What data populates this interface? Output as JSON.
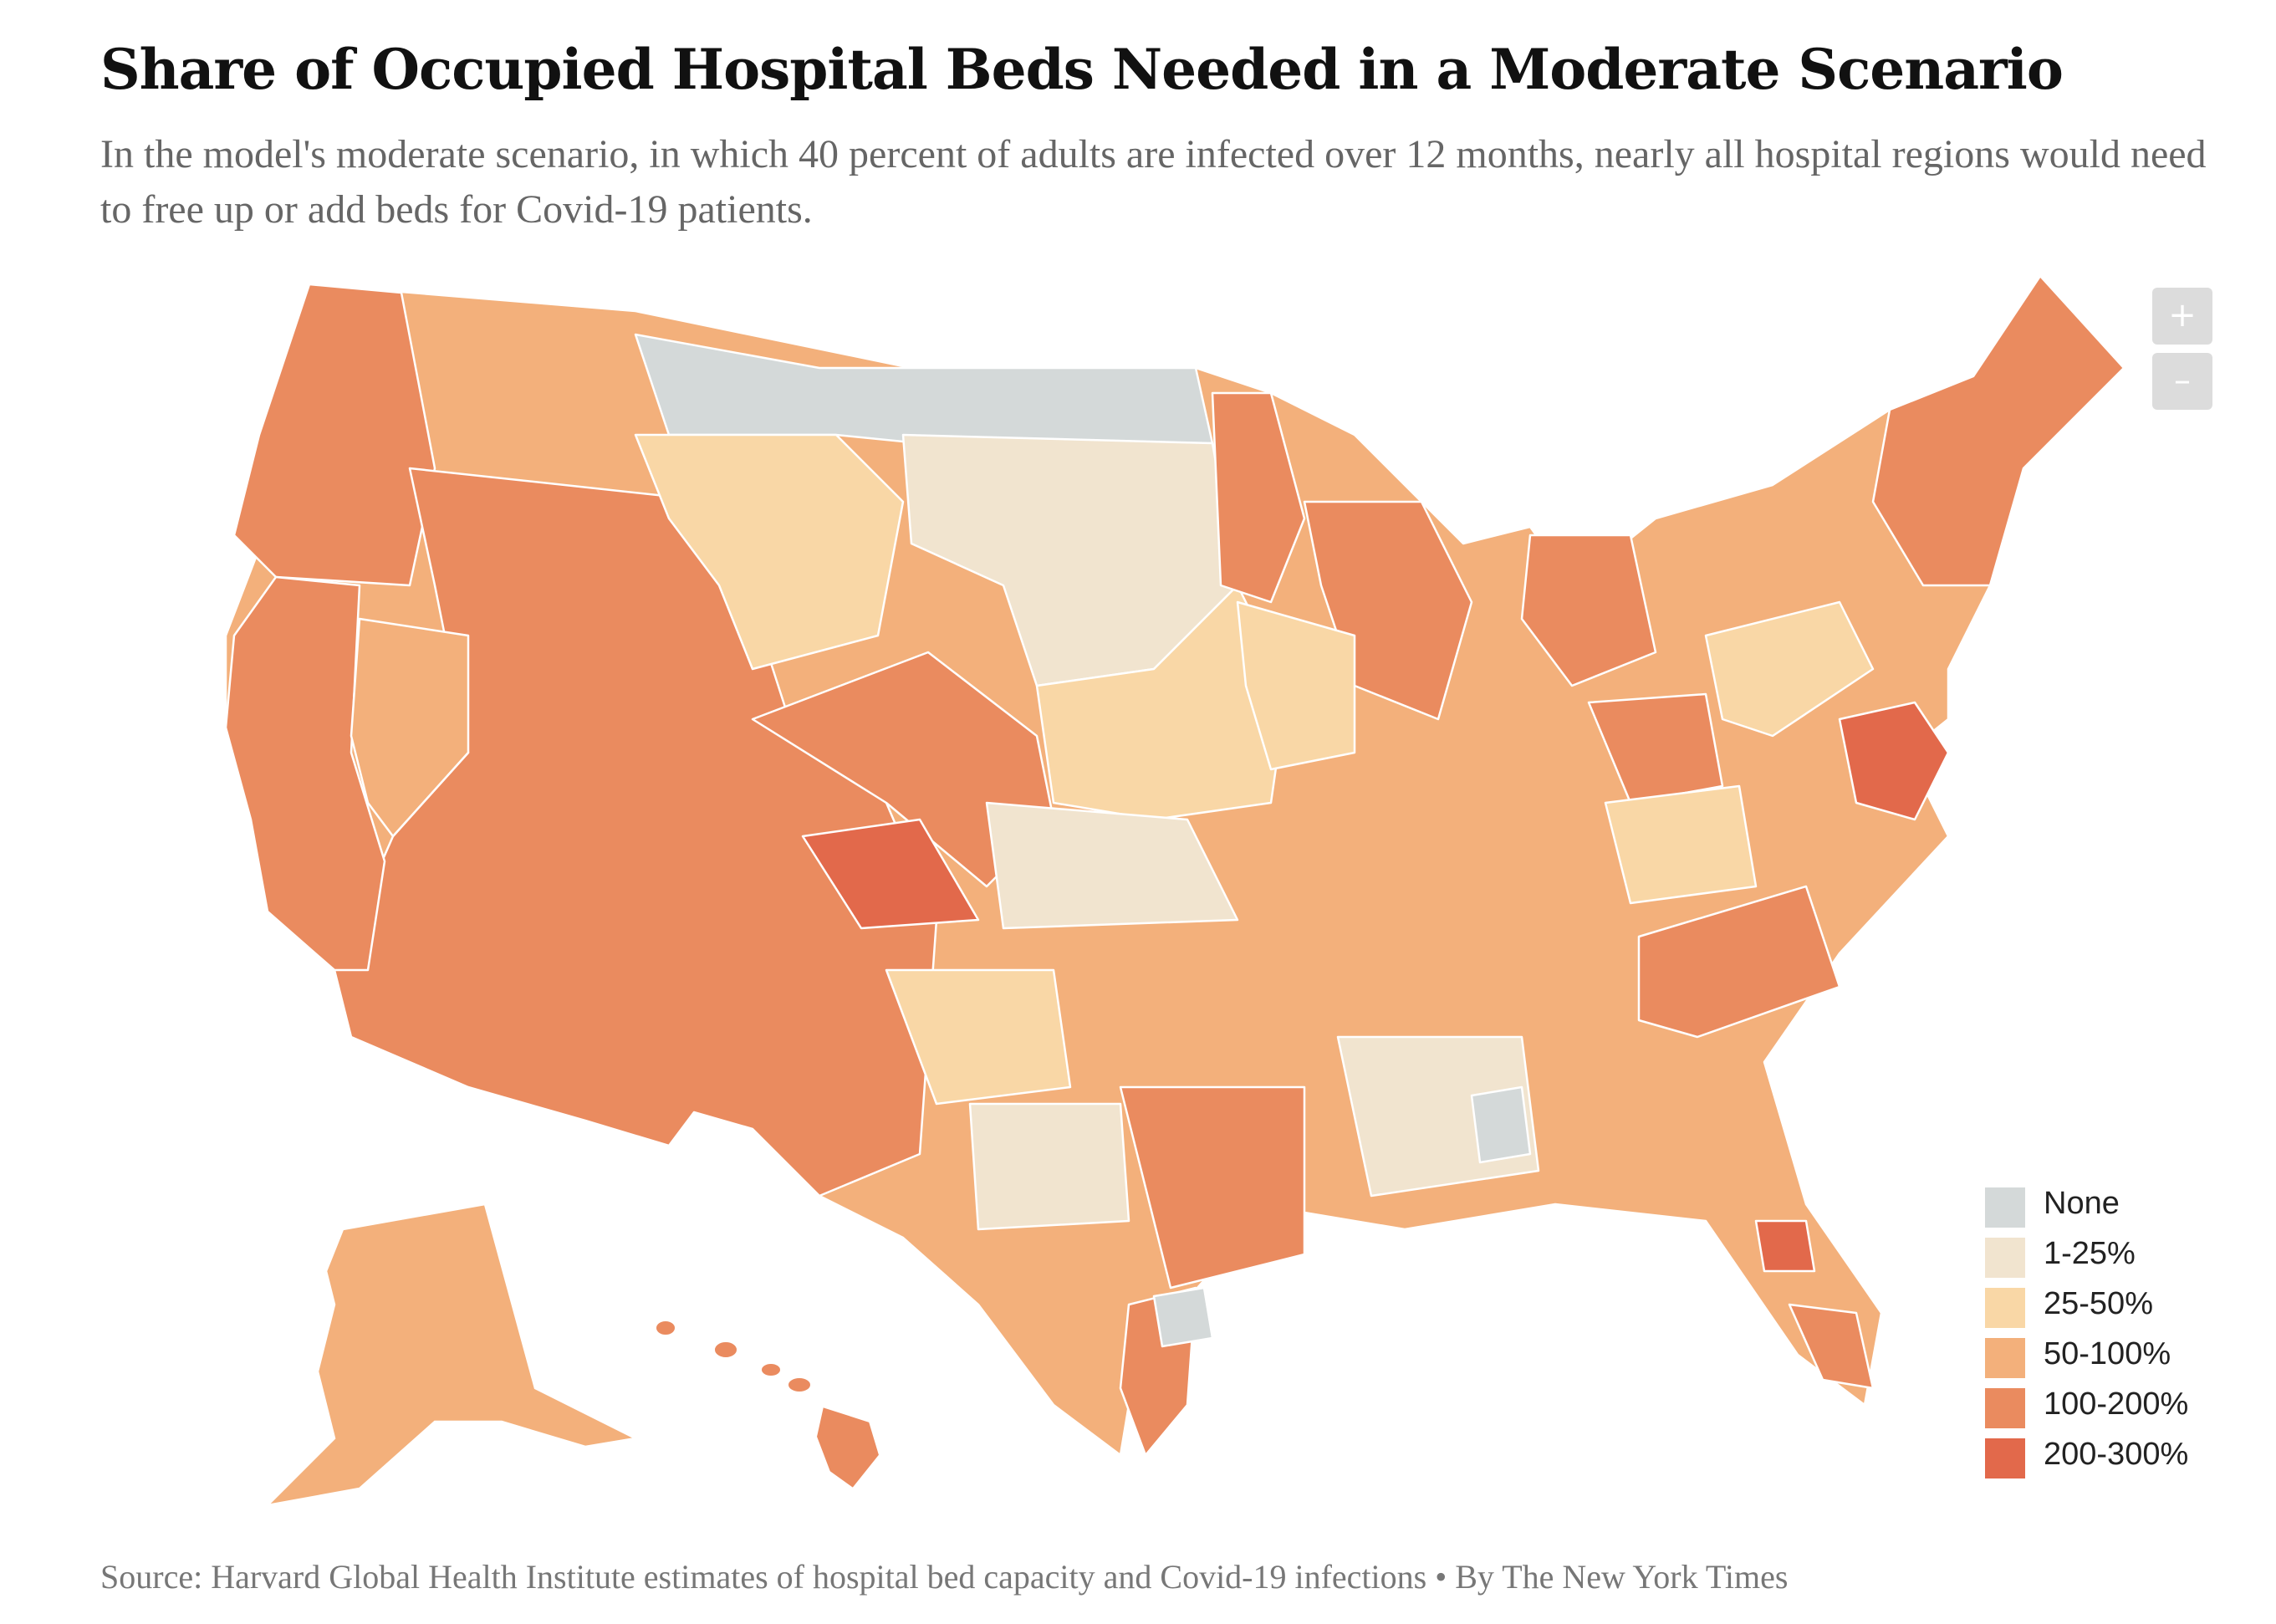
{
  "title": "Share of Occupied Hospital Beds Needed in a Moderate Scenario",
  "subtitle": "In the model's moderate scenario, in which 40 percent of adults are infected over 12 months, nearly all hospital regions would need to free up or add beds for Covid-19 patients.",
  "source": "Source: Harvard Global Health Institute estimates of hospital bed capacity and Covid-19 infections • By The New York Times",
  "zoom": {
    "in_label": "+",
    "out_label": "–"
  },
  "colors": {
    "none": "#d4d9d9",
    "c1_25": "#f1e4cf",
    "c25_50": "#f9d7a6",
    "c50_100": "#f3b07b",
    "c100_200": "#ea8b5f",
    "c200_300": "#e2694b",
    "border": "#ffffff"
  },
  "legend": [
    {
      "label": "None",
      "color": "#d4d9d9"
    },
    {
      "label": "1-25%",
      "color": "#f1e4cf"
    },
    {
      "label": "25-50%",
      "color": "#f9d7a6"
    },
    {
      "label": "50-100%",
      "color": "#f3b07b"
    },
    {
      "label": "100-200%",
      "color": "#ea8b5f"
    },
    {
      "label": "200-300%",
      "color": "#e2694b"
    }
  ]
}
